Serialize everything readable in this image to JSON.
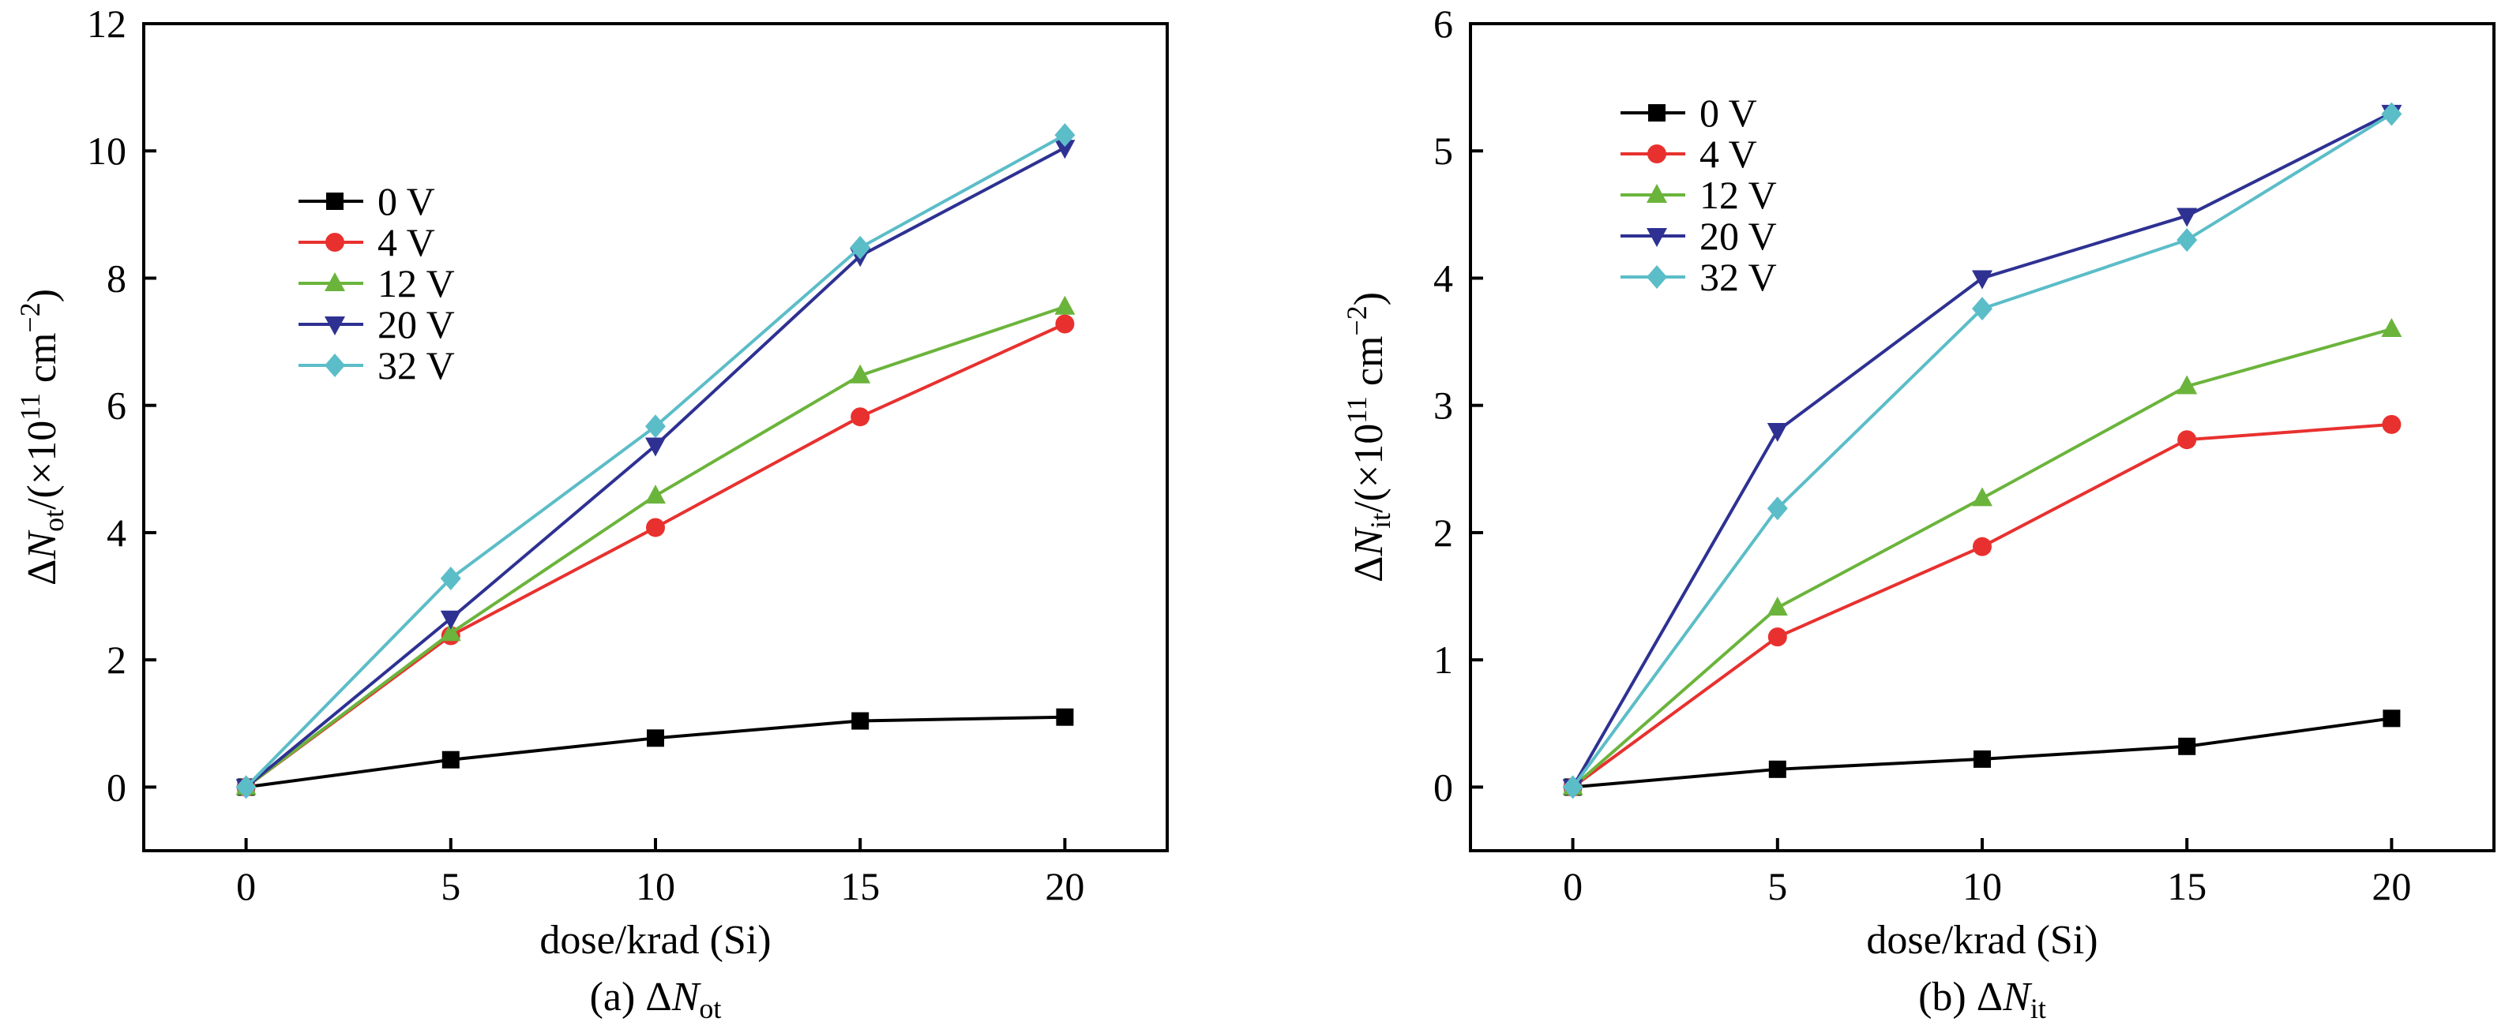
{
  "chart_data": [
    {
      "type": "line",
      "id": "a",
      "caption": "(a) ΔNot",
      "caption_parts": {
        "prefix": "(a) Δ",
        "var": "N",
        "sub": "ot"
      },
      "xlabel": "dose/krad (Si)",
      "ylabel": "ΔNot/(×10^11 cm^-2)",
      "ylabel_parts": {
        "delta": "Δ",
        "var": "N",
        "sub": "ot",
        "rest1": "/(×10",
        "sup1": "11",
        "rest2": " cm",
        "sup2": "−2",
        "rest3": ")"
      },
      "x": [
        0,
        5,
        10,
        15,
        20
      ],
      "xlim": [
        -2.5,
        22.5
      ],
      "ylim": [
        -1,
        12
      ],
      "xticks": [
        "0",
        "5",
        "10",
        "15",
        "20"
      ],
      "yticks": [
        "0",
        "2",
        "4",
        "6",
        "8",
        "10",
        "12"
      ],
      "legend_position": "upper-left",
      "series": [
        {
          "name": "0 V",
          "color": "#000000",
          "marker": "square",
          "values": [
            0,
            0.43,
            0.77,
            1.04,
            1.1
          ]
        },
        {
          "name": "4 V",
          "color": "#e8312f",
          "marker": "circle",
          "values": [
            0,
            2.38,
            4.08,
            5.82,
            7.28
          ]
        },
        {
          "name": "12 V",
          "color": "#6bb43c",
          "marker": "triangle-up",
          "values": [
            0,
            2.42,
            4.58,
            6.47,
            7.55
          ]
        },
        {
          "name": "20 V",
          "color": "#2e3192",
          "marker": "triangle-down",
          "values": [
            0,
            2.65,
            5.37,
            8.35,
            10.05
          ]
        },
        {
          "name": "32 V",
          "color": "#5bbdc8",
          "marker": "diamond",
          "values": [
            0,
            3.28,
            5.67,
            8.48,
            10.25
          ]
        }
      ]
    },
    {
      "type": "line",
      "id": "b",
      "caption": "(b) ΔNit",
      "caption_parts": {
        "prefix": "(b) Δ",
        "var": "N",
        "sub": "it"
      },
      "xlabel": "dose/krad (Si)",
      "ylabel": "ΔNit/(×10^11 cm^-2)",
      "ylabel_parts": {
        "delta": "Δ",
        "var": "N",
        "sub": "it",
        "rest1": "/(×10",
        "sup1": "11",
        "rest2": " cm",
        "sup2": "−2",
        "rest3": ")"
      },
      "x": [
        0,
        5,
        10,
        15,
        20
      ],
      "xlim": [
        -2.5,
        22.5
      ],
      "ylim": [
        -0.5,
        6
      ],
      "xticks": [
        "0",
        "5",
        "10",
        "15",
        "20"
      ],
      "yticks": [
        "0",
        "1",
        "2",
        "3",
        "4",
        "5",
        "6"
      ],
      "legend_position": "upper-left",
      "series": [
        {
          "name": "0 V",
          "color": "#000000",
          "marker": "square",
          "values": [
            0,
            0.14,
            0.22,
            0.32,
            0.54
          ]
        },
        {
          "name": "4 V",
          "color": "#e8312f",
          "marker": "circle",
          "values": [
            0,
            1.18,
            1.89,
            2.73,
            2.85
          ]
        },
        {
          "name": "12 V",
          "color": "#6bb43c",
          "marker": "triangle-up",
          "values": [
            0,
            1.41,
            2.27,
            3.15,
            3.6
          ]
        },
        {
          "name": "20 V",
          "color": "#2e3192",
          "marker": "triangle-down",
          "values": [
            0,
            2.8,
            4.0,
            4.49,
            5.3
          ]
        },
        {
          "name": "32 V",
          "color": "#5bbdc8",
          "marker": "diamond",
          "values": [
            0,
            2.19,
            3.76,
            4.3,
            5.29
          ]
        }
      ]
    }
  ]
}
